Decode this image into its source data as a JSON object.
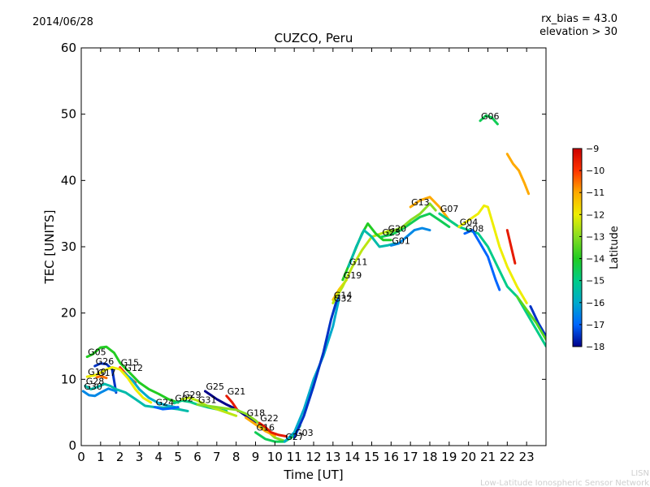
{
  "header": {
    "date": "2014/06/28",
    "rx_bias": "rx_bias = 43.0",
    "elevation": "elevation > 30"
  },
  "footer": {
    "line1": "LISN",
    "line2": "Low-Latitude Ionospheric Sensor Network"
  },
  "chart_data": {
    "type": "line",
    "title": "CUZCO, Peru",
    "xlabel": "Time [UT]",
    "ylabel": "TEC [UNITS]",
    "xlim": [
      0,
      24
    ],
    "ylim": [
      0,
      60
    ],
    "xticks": [
      0,
      1,
      2,
      3,
      4,
      5,
      6,
      7,
      8,
      9,
      10,
      11,
      12,
      13,
      14,
      15,
      16,
      17,
      18,
      19,
      20,
      21,
      22,
      23
    ],
    "yticks": [
      0,
      10,
      20,
      30,
      40,
      50,
      60
    ],
    "grid": false,
    "colorbar": {
      "label": "Latitude",
      "ticks": [
        -9,
        -10,
        -11,
        -12,
        -13,
        -14,
        -15,
        -16,
        -17,
        -18
      ],
      "range": [
        -18,
        -9
      ],
      "colors": [
        "#00008b",
        "#0066ff",
        "#00aacc",
        "#00cc88",
        "#22cc22",
        "#88dd22",
        "#eeee00",
        "#ffaa00",
        "#ff3300",
        "#cc0000"
      ]
    },
    "series": [
      {
        "name": "G05",
        "lat": -14.0,
        "points": [
          [
            0.3,
            13.4
          ],
          [
            0.6,
            13.8
          ],
          [
            1.0,
            14.8
          ],
          [
            1.3,
            14.9
          ],
          [
            1.7,
            14.0
          ],
          [
            2.0,
            12.5
          ],
          [
            2.5,
            11.0
          ],
          [
            3.0,
            9.5
          ],
          [
            3.5,
            8.5
          ],
          [
            4.0,
            7.8
          ],
          [
            4.5,
            7.0
          ],
          [
            5.0,
            6.5
          ]
        ]
      },
      {
        "name": "G26",
        "lat": -17.5,
        "points": [
          [
            0.7,
            12.0
          ],
          [
            1.0,
            12.4
          ],
          [
            1.3,
            12.3
          ],
          [
            1.6,
            11.5
          ],
          [
            1.8,
            8.0
          ]
        ]
      },
      {
        "name": "G15",
        "lat": -10.0,
        "points": [
          [
            2.0,
            11.8
          ],
          [
            2.4,
            10.5
          ],
          [
            2.8,
            9.5
          ]
        ]
      },
      {
        "name": "G12",
        "lat": -16.0,
        "points": [
          [
            2.2,
            11.0
          ],
          [
            2.6,
            10.0
          ],
          [
            3.0,
            8.5
          ],
          [
            3.5,
            7.2
          ],
          [
            4.0,
            6.4
          ],
          [
            4.5,
            6.0
          ],
          [
            5.0,
            5.7
          ]
        ]
      },
      {
        "name": "G10",
        "lat": -12.0,
        "points": [
          [
            0.3,
            10.4
          ],
          [
            0.7,
            10.6
          ],
          [
            1.0,
            11.0
          ],
          [
            1.3,
            11.5
          ],
          [
            1.6,
            11.8
          ],
          [
            2.0,
            11.5
          ],
          [
            2.4,
            10.2
          ],
          [
            2.8,
            8.5
          ],
          [
            3.2,
            7.2
          ],
          [
            3.6,
            6.5
          ]
        ]
      },
      {
        "name": "G17",
        "lat": -10.5,
        "points": [
          [
            0.8,
            10.3
          ],
          [
            1.0,
            10.5
          ],
          [
            1.3,
            10.2
          ]
        ]
      },
      {
        "name": "G28",
        "lat": -15.5,
        "points": [
          [
            0.2,
            9.0
          ],
          [
            0.5,
            8.5
          ],
          [
            0.8,
            8.8
          ],
          [
            1.2,
            9.3
          ],
          [
            1.5,
            9.0
          ],
          [
            1.8,
            8.5
          ],
          [
            2.3,
            8.0
          ],
          [
            2.8,
            7.0
          ],
          [
            3.3,
            6.0
          ],
          [
            3.8,
            5.8
          ],
          [
            4.4,
            5.7
          ],
          [
            5.0,
            5.5
          ],
          [
            5.5,
            5.2
          ]
        ]
      },
      {
        "name": "G30",
        "lat": -16.5,
        "points": [
          [
            0.1,
            8.2
          ],
          [
            0.4,
            7.6
          ],
          [
            0.7,
            7.5
          ],
          [
            1.0,
            8.0
          ],
          [
            1.4,
            8.6
          ],
          [
            1.8,
            8.2
          ]
        ]
      },
      {
        "name": "G24",
        "lat": -17.0,
        "points": [
          [
            3.8,
            5.8
          ],
          [
            4.2,
            5.5
          ],
          [
            4.6,
            5.6
          ],
          [
            5.0,
            5.8
          ]
        ]
      },
      {
        "name": "G02",
        "lat": -15.0,
        "points": [
          [
            4.8,
            6.4
          ],
          [
            5.2,
            6.8
          ],
          [
            5.6,
            6.6
          ],
          [
            6.0,
            6.2
          ],
          [
            6.5,
            5.8
          ],
          [
            7.0,
            5.5
          ],
          [
            7.5,
            5.2
          ]
        ]
      },
      {
        "name": "G29",
        "lat": -12.5,
        "points": [
          [
            5.2,
            7.0
          ],
          [
            5.6,
            7.2
          ],
          [
            6.0,
            6.8
          ],
          [
            6.5,
            6.0
          ],
          [
            7.0,
            5.5
          ],
          [
            7.5,
            5.0
          ],
          [
            8.0,
            4.5
          ]
        ]
      },
      {
        "name": "G25",
        "lat": -18.0,
        "points": [
          [
            6.4,
            8.2
          ],
          [
            6.7,
            7.6
          ],
          [
            7.0,
            7.0
          ],
          [
            7.5,
            6.2
          ],
          [
            8.0,
            5.5
          ],
          [
            8.5,
            4.5
          ],
          [
            9.0,
            3.5
          ]
        ]
      },
      {
        "name": "G21",
        "lat": -9.5,
        "points": [
          [
            7.5,
            7.5
          ],
          [
            7.8,
            6.5
          ],
          [
            8.1,
            5.2
          ]
        ]
      },
      {
        "name": "G31",
        "lat": -13.0,
        "points": [
          [
            6.0,
            6.2
          ],
          [
            6.5,
            6.0
          ],
          [
            7.0,
            5.8
          ],
          [
            7.5,
            5.6
          ],
          [
            8.0,
            5.4
          ],
          [
            8.5,
            4.8
          ],
          [
            9.0,
            3.8
          ],
          [
            9.5,
            2.5
          ],
          [
            10.0,
            1.2
          ],
          [
            10.5,
            0.7
          ]
        ]
      },
      {
        "name": "G18",
        "lat": -11.0,
        "points": [
          [
            8.5,
            4.2
          ],
          [
            9.0,
            3.2
          ],
          [
            9.5,
            2.2
          ],
          [
            10.0,
            1.5
          ]
        ]
      },
      {
        "name": "G22",
        "lat": -9.5,
        "points": [
          [
            9.2,
            3.4
          ],
          [
            9.5,
            2.8
          ],
          [
            9.8,
            2.0
          ],
          [
            10.2,
            1.6
          ],
          [
            10.6,
            1.4
          ]
        ]
      },
      {
        "name": "G16",
        "lat": -14.5,
        "points": [
          [
            9.0,
            2.0
          ],
          [
            9.5,
            1.0
          ],
          [
            10.0,
            0.6
          ],
          [
            10.5,
            0.6
          ],
          [
            11.0,
            1.5
          ],
          [
            11.3,
            3.0
          ]
        ]
      },
      {
        "name": "G27",
        "lat": -16.0,
        "points": [
          [
            10.5,
            0.6
          ],
          [
            11.0,
            2.0
          ],
          [
            11.5,
            5.5
          ],
          [
            12.0,
            10.0
          ],
          [
            12.5,
            13.5
          ],
          [
            13.0,
            18.0
          ],
          [
            13.3,
            22.0
          ]
        ]
      },
      {
        "name": "G03",
        "lat": -17.5,
        "points": [
          [
            11.0,
            1.2
          ],
          [
            11.5,
            4.5
          ],
          [
            12.0,
            9.0
          ],
          [
            12.5,
            14.0
          ],
          [
            12.9,
            19.0
          ],
          [
            13.3,
            23.0
          ]
        ]
      },
      {
        "name": "G14",
        "lat": -11.5,
        "points": [
          [
            13.0,
            22.0
          ],
          [
            13.3,
            23.5
          ],
          [
            13.7,
            25.0
          ]
        ]
      },
      {
        "name": "G32",
        "lat": -12.5,
        "points": [
          [
            13.0,
            21.5
          ],
          [
            13.5,
            24.0
          ],
          [
            14.0,
            27.0
          ],
          [
            14.5,
            29.5
          ],
          [
            15.0,
            31.5
          ],
          [
            15.5,
            32.0
          ],
          [
            16.0,
            32.5
          ]
        ]
      },
      {
        "name": "G19",
        "lat": -14.0,
        "points": [
          [
            13.5,
            25.0
          ],
          [
            14.0,
            28.5
          ],
          [
            14.5,
            32.0
          ],
          [
            14.8,
            33.5
          ],
          [
            15.2,
            32.0
          ],
          [
            15.6,
            31.0
          ],
          [
            16.0,
            31.0
          ]
        ]
      },
      {
        "name": "G11",
        "lat": -15.5,
        "points": [
          [
            13.8,
            27.0
          ],
          [
            14.2,
            30.0
          ],
          [
            14.6,
            32.5
          ],
          [
            15.0,
            31.5
          ],
          [
            15.4,
            30.0
          ],
          [
            15.8,
            30.2
          ],
          [
            16.2,
            30.5
          ]
        ]
      },
      {
        "name": "G23",
        "lat": -14.5,
        "points": [
          [
            15.5,
            31.5
          ],
          [
            16.0,
            31.8
          ],
          [
            16.5,
            32.5
          ],
          [
            17.0,
            33.5
          ],
          [
            17.5,
            34.5
          ],
          [
            18.0,
            35.0
          ],
          [
            18.5,
            34.0
          ],
          [
            19.0,
            33.0
          ]
        ]
      },
      {
        "name": "G20",
        "lat": -13.0,
        "points": [
          [
            15.8,
            32.0
          ],
          [
            16.2,
            32.5
          ],
          [
            16.6,
            33.0
          ],
          [
            17.0,
            34.0
          ],
          [
            17.5,
            35.0
          ],
          [
            18.0,
            36.5
          ],
          [
            18.3,
            35.5
          ]
        ]
      },
      {
        "name": "G01",
        "lat": -16.5,
        "points": [
          [
            16.0,
            30.2
          ],
          [
            16.4,
            30.5
          ],
          [
            16.8,
            31.5
          ],
          [
            17.2,
            32.5
          ],
          [
            17.6,
            32.8
          ],
          [
            18.0,
            32.5
          ]
        ]
      },
      {
        "name": "G13",
        "lat": -11.0,
        "points": [
          [
            17.0,
            36.0
          ],
          [
            17.5,
            37.0
          ],
          [
            18.0,
            37.5
          ],
          [
            18.5,
            36.0
          ],
          [
            19.0,
            34.0
          ],
          [
            19.5,
            33.0
          ]
        ]
      },
      {
        "name": "G07",
        "lat": -15.0,
        "points": [
          [
            18.5,
            35.0
          ],
          [
            19.0,
            34.0
          ],
          [
            19.5,
            33.0
          ],
          [
            20.0,
            32.5
          ],
          [
            20.5,
            32.0
          ],
          [
            21.0,
            30.0
          ],
          [
            21.5,
            27.0
          ],
          [
            22.0,
            24.0
          ],
          [
            22.5,
            22.5
          ],
          [
            23.0,
            20.0
          ],
          [
            23.5,
            17.5
          ],
          [
            24.0,
            15.0
          ]
        ]
      },
      {
        "name": "G04",
        "lat": -12.0,
        "points": [
          [
            19.5,
            33.0
          ],
          [
            20.0,
            34.0
          ],
          [
            20.5,
            35.0
          ],
          [
            20.8,
            36.2
          ],
          [
            21.0,
            36.0
          ],
          [
            21.3,
            33.0
          ],
          [
            21.6,
            30.0
          ],
          [
            22.0,
            27.0
          ],
          [
            22.5,
            24.0
          ],
          [
            23.0,
            21.5
          ]
        ]
      },
      {
        "name": "G08",
        "lat": -17.0,
        "points": [
          [
            19.8,
            32.0
          ],
          [
            20.2,
            32.5
          ],
          [
            20.6,
            30.5
          ],
          [
            21.0,
            28.5
          ],
          [
            21.4,
            25.0
          ],
          [
            21.6,
            23.5
          ]
        ]
      },
      {
        "name": "G06",
        "lat": -14.5,
        "points": [
          [
            20.6,
            49.0
          ],
          [
            20.9,
            49.8
          ],
          [
            21.2,
            49.5
          ],
          [
            21.5,
            48.5
          ]
        ]
      },
      {
        "name": "",
        "lat": -11.0,
        "points": [
          [
            22.0,
            44.0
          ],
          [
            22.3,
            42.5
          ],
          [
            22.6,
            41.5
          ],
          [
            22.9,
            39.5
          ],
          [
            23.1,
            38.0
          ]
        ]
      },
      {
        "name": "",
        "lat": -9.5,
        "points": [
          [
            22.0,
            32.5
          ],
          [
            22.2,
            30.0
          ],
          [
            22.4,
            27.5
          ]
        ]
      },
      {
        "name": "",
        "lat": -17.5,
        "points": [
          [
            23.2,
            21.0
          ],
          [
            23.6,
            18.5
          ],
          [
            24.0,
            16.5
          ]
        ]
      },
      {
        "name": "",
        "lat": -13.5,
        "points": [
          [
            22.5,
            22.5
          ],
          [
            23.0,
            20.5
          ],
          [
            23.5,
            18.5
          ],
          [
            24.0,
            16.0
          ]
        ]
      }
    ]
  }
}
